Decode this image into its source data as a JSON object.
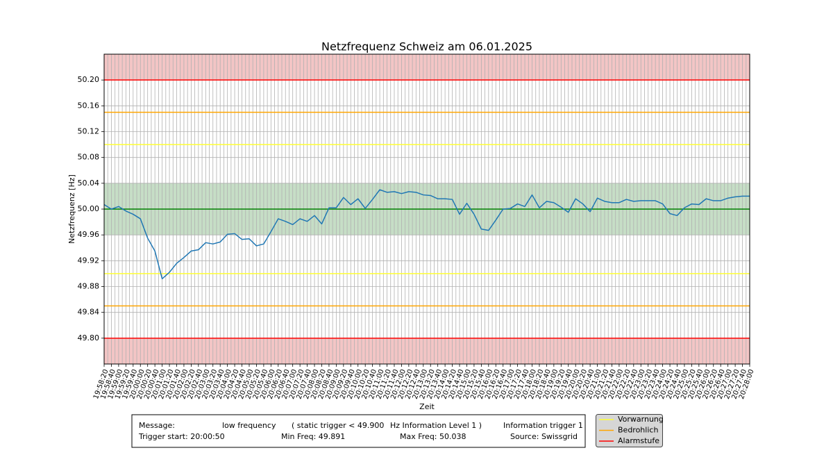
{
  "chart_data": {
    "type": "line",
    "title": "Netzfrequenz Schweiz am 06.01.2025",
    "x_label": "Zeit",
    "y_label": "Netzfrequenz [Hz]",
    "categories": [
      "19:58:20",
      "19:58:40",
      "19:59:00",
      "19:59:20",
      "19:59:40",
      "20:00:00",
      "20:00:20",
      "20:00:40",
      "20:01:00",
      "20:01:20",
      "20:01:40",
      "20:02:00",
      "20:02:20",
      "20:02:40",
      "20:03:00",
      "20:03:20",
      "20:03:40",
      "20:04:00",
      "20:04:20",
      "20:04:40",
      "20:05:00",
      "20:05:20",
      "20:05:40",
      "20:06:00",
      "20:06:20",
      "20:06:40",
      "20:07:00",
      "20:07:20",
      "20:07:40",
      "20:08:00",
      "20:08:20",
      "20:08:40",
      "20:09:00",
      "20:09:20",
      "20:09:40",
      "20:10:00",
      "20:10:20",
      "20:10:40",
      "20:11:00",
      "20:11:20",
      "20:11:40",
      "20:12:00",
      "20:12:20",
      "20:12:40",
      "20:13:00",
      "20:13:20",
      "20:13:40",
      "20:14:00",
      "20:14:20",
      "20:14:40",
      "20:15:00",
      "20:15:20",
      "20:15:40",
      "20:16:00",
      "20:16:20",
      "20:16:40",
      "20:17:00",
      "20:17:20",
      "20:17:40",
      "20:18:00",
      "20:18:20",
      "20:18:40",
      "20:19:00",
      "20:19:20",
      "20:19:40",
      "20:20:00",
      "20:20:20",
      "20:20:40",
      "20:21:00",
      "20:21:20",
      "20:21:40",
      "20:22:00",
      "20:22:20",
      "20:22:40",
      "20:23:00",
      "20:23:20",
      "20:23:40",
      "20:24:00",
      "20:24:20",
      "20:24:40",
      "20:25:00",
      "20:25:20",
      "20:25:40",
      "20:26:00",
      "20:26:20",
      "20:26:40",
      "20:27:00",
      "20:27:20",
      "20:27:40",
      "20:28:00"
    ],
    "series": [
      {
        "color": "#1f77b4",
        "values": [
          50.007,
          50.0,
          50.004,
          49.997,
          49.992,
          49.985,
          49.955,
          49.935,
          49.892,
          49.902,
          49.916,
          49.925,
          49.935,
          49.937,
          49.948,
          49.946,
          49.949,
          49.961,
          49.962,
          49.953,
          49.954,
          49.943,
          49.946,
          49.965,
          49.985,
          49.981,
          49.976,
          49.985,
          49.981,
          49.99,
          49.977,
          50.002,
          50.002,
          50.018,
          50.007,
          50.016,
          50.001,
          50.015,
          50.03,
          50.026,
          50.027,
          50.024,
          50.027,
          50.026,
          50.022,
          50.021,
          50.016,
          50.016,
          50.015,
          49.992,
          50.009,
          49.992,
          49.969,
          49.967,
          49.983,
          50.0,
          50.001,
          50.008,
          50.004,
          50.022,
          50.002,
          50.012,
          50.01,
          50.003,
          49.995,
          50.016,
          50.008,
          49.996,
          50.017,
          50.012,
          50.01,
          50.01,
          50.015,
          50.012,
          50.013,
          50.013,
          50.013,
          50.008,
          49.993,
          49.99,
          50.002,
          50.008,
          50.007,
          50.016,
          50.013,
          50.013,
          50.017,
          50.019,
          50.02,
          50.02
        ]
      }
    ],
    "ylim": [
      49.76,
      50.24
    ],
    "yticks": [
      {
        "value": 49.8,
        "label": "49.80"
      },
      49.84,
      49.88,
      49.92,
      49.96,
      {
        "value": 50,
        "label": "50.00"
      },
      50.04,
      50.08,
      50.12,
      50.16,
      {
        "value": 50.2,
        "label": "50.20"
      }
    ],
    "grid": true,
    "nominal": {
      "value": 50,
      "color": "#008000",
      "band": [
        49.96,
        50.04
      ],
      "band_color": "#c6dec6"
    },
    "thresholds": [
      {
        "name": "Vorwarnung",
        "color": "#ffff33",
        "values": [
          50.1,
          49.9
        ]
      },
      {
        "name": "Bedrohlich",
        "color": "#ffa500",
        "values": [
          50.15,
          49.85
        ]
      },
      {
        "name": "Alarmstufe",
        "color": "#ff0000",
        "values": [
          50.2,
          49.8
        ],
        "fill": "#f3c5c5"
      }
    ],
    "legend": "lower right",
    "info": [
      [
        "Message:",
        "low frequency",
        "( static trigger < 49.900",
        "Hz Information Level 1 )",
        "Information trigger 1"
      ],
      [
        "Trigger start: 20:00:50",
        "Min Freq: 49.891",
        "Max Freq: 50.038",
        "Source: Swissgrid"
      ]
    ]
  }
}
